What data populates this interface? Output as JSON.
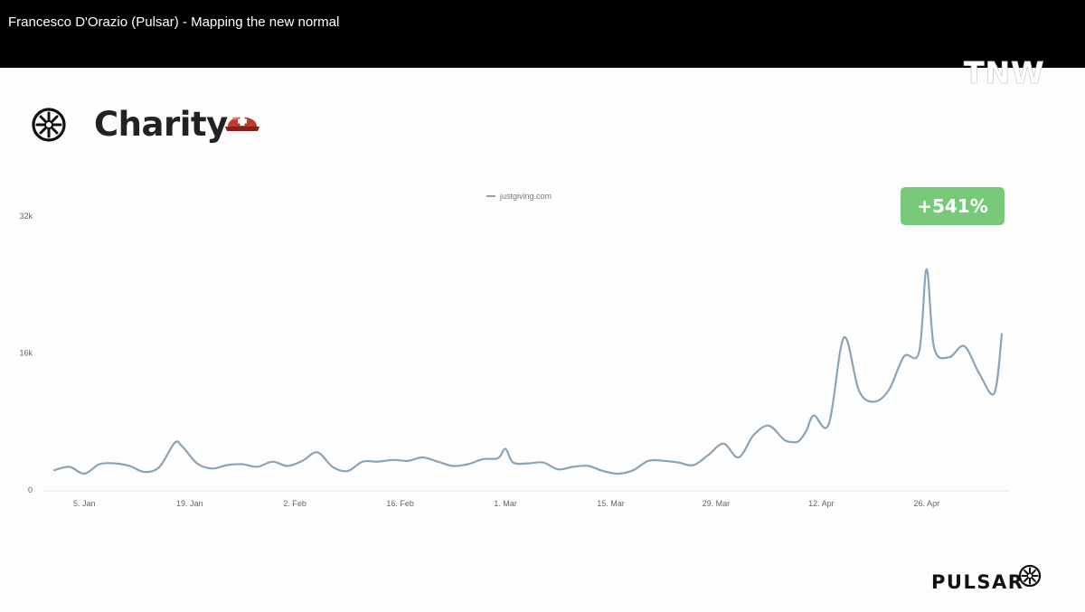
{
  "window": {
    "title": "Francesco D'Orazio (Pulsar) - Mapping the new normal"
  },
  "slide": {
    "heading": "Charity",
    "badge": "+541%",
    "footer_logo": "PULSAR",
    "corner_logo": "TNW"
  },
  "icons": {
    "brand": "pulsar-star-icon",
    "helmet": "rescue-helmet-icon",
    "footer": "pulsar-star-icon"
  },
  "colors": {
    "line": "#8aa3b8",
    "badge": "#79c97b",
    "text": "#222222"
  },
  "chart_data": {
    "type": "line",
    "title": "",
    "xlabel": "",
    "ylabel": "",
    "legend": {
      "placement": "top-center",
      "entries": [
        "justgiving.com"
      ]
    },
    "grid": false,
    "ylim": [
      0,
      32000
    ],
    "y_ticks": [
      0,
      16000,
      32000
    ],
    "y_tick_labels": [
      "0",
      "16k",
      "32k"
    ],
    "x_range": [
      "2020-01-01",
      "2020-05-06"
    ],
    "x_ticks": [
      "2020-01-05",
      "2020-01-19",
      "2020-02-02",
      "2020-02-16",
      "2020-03-01",
      "2020-03-15",
      "2020-03-29",
      "2020-04-12",
      "2020-04-26"
    ],
    "x_tick_labels": [
      "5. Jan",
      "19. Jan",
      "2. Feb",
      "16. Feb",
      "1. Mar",
      "15. Mar",
      "29. Mar",
      "12. Apr",
      "26. Apr"
    ],
    "series": [
      {
        "name": "justgiving.com",
        "x": [
          "2020-01-01",
          "2020-01-03",
          "2020-01-05",
          "2020-01-07",
          "2020-01-09",
          "2020-01-11",
          "2020-01-13",
          "2020-01-15",
          "2020-01-17",
          "2020-01-18",
          "2020-01-20",
          "2020-01-22",
          "2020-01-24",
          "2020-01-26",
          "2020-01-28",
          "2020-01-30",
          "2020-02-01",
          "2020-02-03",
          "2020-02-05",
          "2020-02-07",
          "2020-02-09",
          "2020-02-11",
          "2020-02-13",
          "2020-02-15",
          "2020-02-17",
          "2020-02-19",
          "2020-02-21",
          "2020-02-23",
          "2020-02-25",
          "2020-02-27",
          "2020-02-29",
          "2020-03-01",
          "2020-03-02",
          "2020-03-04",
          "2020-03-06",
          "2020-03-08",
          "2020-03-10",
          "2020-03-12",
          "2020-03-14",
          "2020-03-16",
          "2020-03-18",
          "2020-03-20",
          "2020-03-22",
          "2020-03-24",
          "2020-03-26",
          "2020-03-28",
          "2020-03-30",
          "2020-04-01",
          "2020-04-03",
          "2020-04-05",
          "2020-04-07",
          "2020-04-08",
          "2020-04-09",
          "2020-04-10",
          "2020-04-11",
          "2020-04-13",
          "2020-04-15",
          "2020-04-17",
          "2020-04-19",
          "2020-04-21",
          "2020-04-23",
          "2020-04-25",
          "2020-04-26",
          "2020-04-27",
          "2020-04-29",
          "2020-05-01",
          "2020-05-03",
          "2020-05-05",
          "2020-05-06"
        ],
        "values": [
          2200,
          2600,
          1800,
          2900,
          3000,
          2700,
          2000,
          2600,
          5400,
          5000,
          3000,
          2400,
          2800,
          2900,
          2600,
          3200,
          2700,
          3300,
          4300,
          2600,
          2100,
          3200,
          3200,
          3400,
          3300,
          3700,
          3200,
          2700,
          2900,
          3500,
          3600,
          4700,
          3100,
          3000,
          3100,
          2300,
          2600,
          2700,
          2100,
          1800,
          2200,
          3300,
          3300,
          3100,
          2800,
          4000,
          5300,
          3700,
          6300,
          7400,
          5800,
          5500,
          5600,
          6800,
          8600,
          7600,
          17700,
          11500,
          10200,
          11600,
          15500,
          16000,
          25700,
          16500,
          15400,
          16700,
          13500,
          11200,
          18100
        ]
      }
    ]
  }
}
